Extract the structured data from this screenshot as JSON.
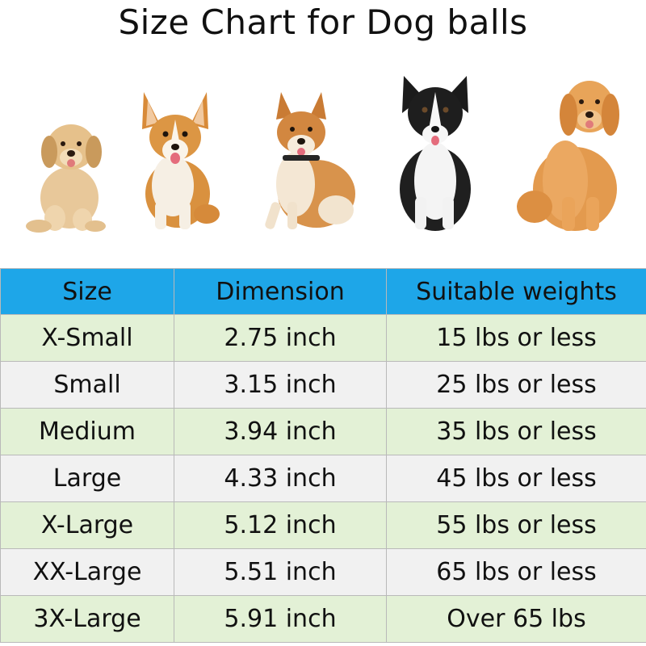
{
  "title": "Size Chart for Dog balls",
  "dogs": [
    {
      "name": "golden-retriever-puppy"
    },
    {
      "name": "corgi"
    },
    {
      "name": "shiba-inu"
    },
    {
      "name": "border-collie"
    },
    {
      "name": "golden-retriever-adult"
    }
  ],
  "colors": {
    "header_bg": "#1ea6e8",
    "row_green": "#e3f1d6",
    "row_grey": "#f1f1f1"
  },
  "table": {
    "headers": [
      "Size",
      "Dimension",
      "Suitable weights"
    ],
    "rows": [
      [
        "X-Small",
        "2.75 inch",
        "15 lbs or less"
      ],
      [
        "Small",
        "3.15 inch",
        "25 lbs or less"
      ],
      [
        "Medium",
        "3.94 inch",
        "35 lbs or less"
      ],
      [
        "Large",
        "4.33 inch",
        "45 lbs or less"
      ],
      [
        "X-Large",
        "5.12 inch",
        "55 lbs or less"
      ],
      [
        "XX-Large",
        "5.51 inch",
        "65 lbs or less"
      ],
      [
        "3X-Large",
        "5.91 inch",
        "Over 65 lbs"
      ]
    ]
  }
}
